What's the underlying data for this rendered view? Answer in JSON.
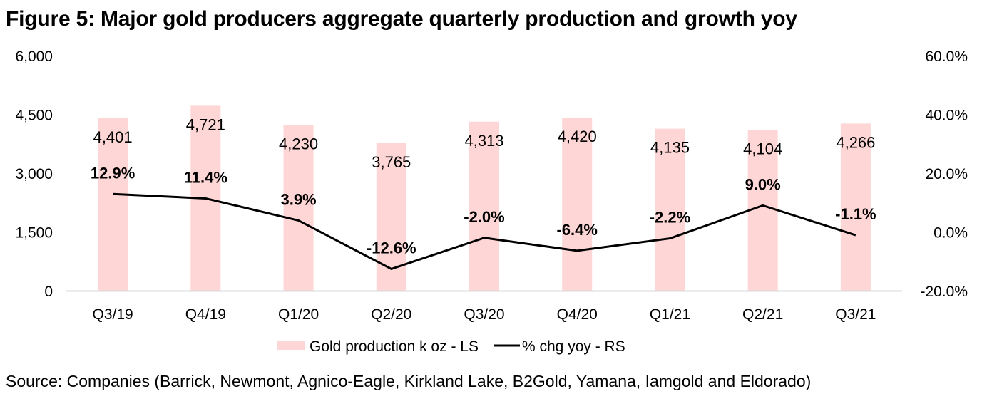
{
  "title": "Figure 5: Major gold producers aggregate quarterly production and growth yoy",
  "source": "Source: Companies (Barrick, Newmont, Agnico-Eagle, Kirkland Lake, B2Gold, Yamana, Iamgold and Eldorado)",
  "colors": {
    "bar": "#fed6d6",
    "line": "#000000",
    "axis": "#d9d9d9"
  },
  "chart_data": {
    "type": "bar+line",
    "title": "Figure 5: Major gold producers aggregate quarterly production and growth yoy",
    "categories": [
      "Q3/19",
      "Q4/19",
      "Q1/20",
      "Q2/20",
      "Q3/20",
      "Q4/20",
      "Q1/21",
      "Q2/21",
      "Q3/21"
    ],
    "series": [
      {
        "name": "Gold production k oz - LS",
        "type": "bar",
        "axis": "left",
        "values": [
          4401,
          4721,
          4230,
          3765,
          4313,
          4420,
          4135,
          4104,
          4266
        ],
        "labels": [
          "4,401",
          "4,721",
          "4,230",
          "3,765",
          "4,313",
          "4,420",
          "4,135",
          "4,104",
          "4,266"
        ]
      },
      {
        "name": "% chg yoy - RS",
        "type": "line",
        "axis": "right",
        "values": [
          12.9,
          11.4,
          3.9,
          -12.6,
          -2.0,
          -6.4,
          -2.2,
          9.0,
          -1.1
        ],
        "labels": [
          "12.9%",
          "11.4%",
          "3.9%",
          "-12.6%",
          "-2.0%",
          "-6.4%",
          "-2.2%",
          "9.0%",
          "-1.1%"
        ]
      }
    ],
    "y_left": {
      "range": [
        0,
        6000
      ],
      "ticks": [
        0,
        1500,
        3000,
        4500,
        6000
      ],
      "tick_labels": [
        "0",
        "1,500",
        "3,000",
        "4,500",
        "6,000"
      ]
    },
    "y_right": {
      "range": [
        -20,
        60
      ],
      "ticks": [
        -20,
        0,
        20,
        40,
        60
      ],
      "tick_labels": [
        "-20.0%",
        "0.0%",
        "20.0%",
        "40.0%",
        "60.0%"
      ]
    },
    "xlabel": "",
    "ylabel": "",
    "grid": false,
    "legend": {
      "position": "bottom",
      "entries": [
        "Gold production k oz - LS",
        "% chg yoy - RS"
      ]
    }
  }
}
